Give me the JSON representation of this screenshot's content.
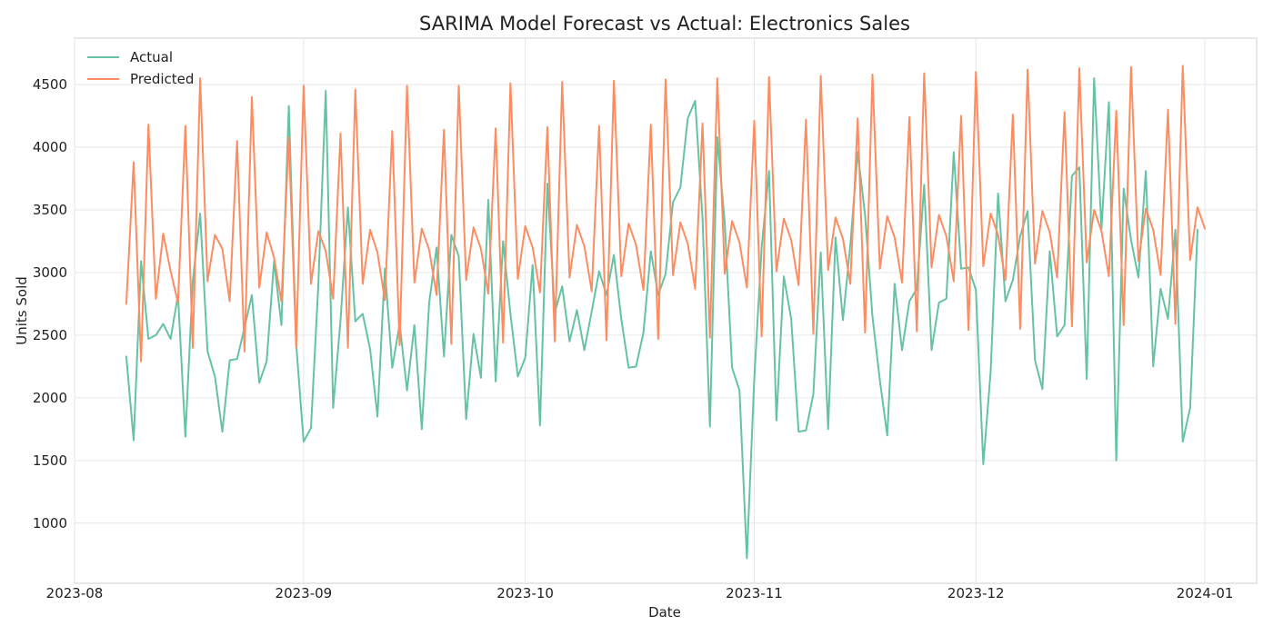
{
  "chart_data": {
    "type": "line",
    "title": "SARIMA Model Forecast vs Actual: Electronics Sales",
    "xlabel": "Date",
    "ylabel": "Units Sold",
    "x_start": "2023-08-08",
    "x_end": "2024-01-01",
    "xlim": [
      "2023-08-01",
      "2024-01-08"
    ],
    "ylim": [
      520,
      4870
    ],
    "x_ticks": [
      "2023-08",
      "2023-09",
      "2023-10",
      "2023-11",
      "2023-12",
      "2024-01"
    ],
    "y_ticks": [
      1000,
      1500,
      2000,
      2500,
      3000,
      3500,
      4000,
      4500
    ],
    "grid": true,
    "legend_position": "upper-left",
    "series": [
      {
        "name": "Actual",
        "color": "#66c2a5",
        "values": [
          2330,
          1660,
          3090,
          2470,
          2500,
          2590,
          2470,
          2820,
          1690,
          2930,
          3470,
          2370,
          2170,
          1730,
          2300,
          2310,
          2560,
          2820,
          2120,
          2290,
          3090,
          2580,
          4330,
          2430,
          1650,
          1760,
          2910,
          4450,
          1920,
          2620,
          3520,
          2610,
          2670,
          2390,
          1850,
          3030,
          2240,
          2590,
          2060,
          2580,
          1750,
          2760,
          3200,
          2330,
          3300,
          3130,
          1830,
          2510,
          2160,
          3580,
          2130,
          3250,
          2670,
          2170,
          2320,
          3060,
          1780,
          3710,
          2680,
          2890,
          2450,
          2700,
          2380,
          2690,
          3010,
          2820,
          3140,
          2630,
          2240,
          2250,
          2520,
          3170,
          2820,
          2990,
          3560,
          3680,
          4230,
          4370,
          3430,
          1770,
          4080,
          3400,
          2240,
          2060,
          720,
          2150,
          3200,
          3810,
          1820,
          2970,
          2630,
          1730,
          1740,
          2030,
          3160,
          1750,
          3280,
          2620,
          3220,
          3960,
          3460,
          2650,
          2140,
          1700,
          2910,
          2380,
          2770,
          2870,
          3700,
          2380,
          2760,
          2790,
          3960,
          3030,
          3040,
          2860,
          1470,
          2210,
          3630,
          2770,
          2940,
          3290,
          3490,
          2300,
          2070,
          3170,
          2490,
          2580,
          3770,
          3840,
          2150,
          4550,
          3350,
          4360,
          1500,
          3670,
          3260,
          2960,
          3810,
          2250,
          2870,
          2630,
          3340,
          1650,
          1920,
          3340
        ]
      },
      {
        "name": "Predicted",
        "color": "#fc8d62",
        "values": [
          2750,
          3880,
          2290,
          4180,
          2790,
          3310,
          3010,
          2760,
          4170,
          2400,
          4550,
          2930,
          3300,
          3190,
          2770,
          4050,
          2370,
          4400,
          2880,
          3320,
          3120,
          2770,
          4080,
          2400,
          4490,
          2910,
          3330,
          3170,
          2790,
          4110,
          2400,
          4460,
          2910,
          3340,
          3160,
          2780,
          4130,
          2420,
          4490,
          2920,
          3350,
          3180,
          2820,
          4140,
          2430,
          4490,
          2940,
          3360,
          3190,
          2830,
          4150,
          2440,
          4510,
          2950,
          3370,
          3200,
          2840,
          4160,
          2450,
          4520,
          2960,
          3380,
          3210,
          2850,
          4170,
          2460,
          4530,
          2970,
          3390,
          3220,
          2860,
          4180,
          2470,
          4540,
          2980,
          3400,
          3230,
          2870,
          4190,
          2480,
          4550,
          2990,
          3410,
          3240,
          2880,
          4210,
          2490,
          4560,
          3010,
          3430,
          3260,
          2900,
          4220,
          2510,
          4570,
          3020,
          3440,
          3270,
          2910,
          4230,
          2520,
          4580,
          3030,
          3450,
          3280,
          2920,
          4240,
          2530,
          4590,
          3040,
          3460,
          3290,
          2930,
          4250,
          2540,
          4600,
          3050,
          3470,
          3300,
          2940,
          4260,
          2550,
          4620,
          3070,
          3490,
          3320,
          2960,
          4280,
          2570,
          4630,
          3080,
          3500,
          3330,
          2970,
          4290,
          2580,
          4640,
          3090,
          3510,
          3340,
          2980,
          4300,
          2590,
          4650,
          3100,
          3520,
          3350
        ]
      }
    ]
  }
}
